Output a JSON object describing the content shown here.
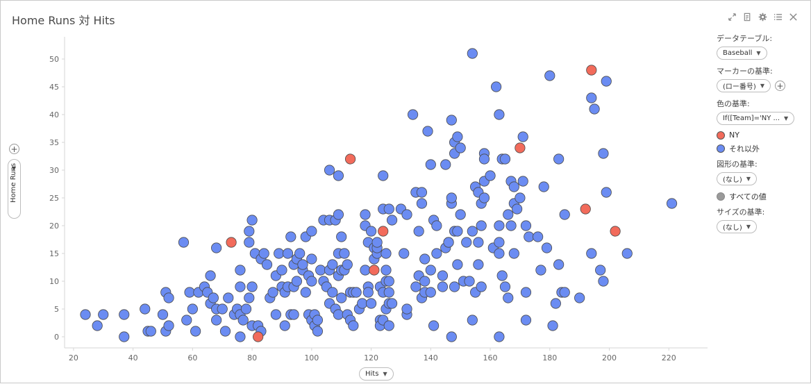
{
  "title": "Home Runs 対 Hits",
  "toolbar": {
    "icons": [
      "expand-icon",
      "export-icon",
      "settings-icon",
      "list-icon",
      "close-icon"
    ]
  },
  "panel": {
    "data_table_label": "データテーブル:",
    "data_table_value": "Baseball",
    "marker_by_label": "マーカーの基準:",
    "marker_by_value": "(ロー番号)",
    "color_by_label": "色の基準:",
    "color_by_value": "If([Team]='NY ...",
    "legend": [
      {
        "label": "NY",
        "color": "#f26b5b"
      },
      {
        "label": "それ以外",
        "color": "#6b8cf2"
      }
    ],
    "shape_by_label": "図形の基準:",
    "shape_by_value": "(なし)",
    "shape_legend_label": "すべての値",
    "shape_legend_color": "#9a9a9a",
    "size_by_label": "サイズの基準:",
    "size_by_value": "(なし)"
  },
  "colors": {
    "ny": "#f26b5b",
    "other": "#6b8cf2",
    "outline": "#4a4a4a",
    "axis": "#d6d6d6",
    "tick_text": "#666666"
  },
  "chart_data": {
    "type": "scatter",
    "xlabel": "Hits",
    "ylabel": "Home Runs",
    "xlim": [
      17,
      233
    ],
    "ylim": [
      -2,
      53
    ],
    "xticks": [
      20,
      40,
      60,
      80,
      100,
      120,
      140,
      160,
      180,
      200,
      220
    ],
    "yticks": [
      0,
      5,
      10,
      15,
      20,
      25,
      30,
      35,
      40,
      45,
      50
    ],
    "grid": false,
    "legend": "right",
    "series": [
      {
        "name": "NY",
        "points": [
          [
            73,
            17
          ],
          [
            82,
            0
          ],
          [
            113,
            32
          ],
          [
            121,
            12
          ],
          [
            124,
            19
          ],
          [
            170,
            34
          ],
          [
            192,
            23
          ],
          [
            194,
            48
          ],
          [
            202,
            19
          ]
        ]
      },
      {
        "name": "それ以外",
        "points": [
          [
            24,
            4
          ],
          [
            28,
            2
          ],
          [
            30,
            4
          ],
          [
            37,
            4
          ],
          [
            37,
            0
          ],
          [
            44,
            5
          ],
          [
            45,
            1
          ],
          [
            46,
            1
          ],
          [
            50,
            4
          ],
          [
            51,
            8
          ],
          [
            51,
            1
          ],
          [
            52,
            2
          ],
          [
            52,
            7
          ],
          [
            57,
            17
          ],
          [
            58,
            3
          ],
          [
            59,
            8
          ],
          [
            60,
            5
          ],
          [
            61,
            1
          ],
          [
            62,
            8
          ],
          [
            64,
            9
          ],
          [
            65,
            8
          ],
          [
            66,
            6
          ],
          [
            66,
            11
          ],
          [
            67,
            7
          ],
          [
            68,
            3
          ],
          [
            68,
            5
          ],
          [
            68,
            16
          ],
          [
            70,
            5
          ],
          [
            71,
            1
          ],
          [
            72,
            7
          ],
          [
            74,
            4
          ],
          [
            75,
            5
          ],
          [
            76,
            0
          ],
          [
            76,
            9
          ],
          [
            76,
            12
          ],
          [
            76,
            4
          ],
          [
            77,
            3
          ],
          [
            78,
            5
          ],
          [
            79,
            17
          ],
          [
            79,
            19
          ],
          [
            79,
            7
          ],
          [
            80,
            21
          ],
          [
            80,
            2
          ],
          [
            80,
            9
          ],
          [
            81,
            15
          ],
          [
            82,
            2
          ],
          [
            83,
            1
          ],
          [
            83,
            14
          ],
          [
            84,
            15
          ],
          [
            85,
            13
          ],
          [
            86,
            7
          ],
          [
            87,
            8
          ],
          [
            88,
            11
          ],
          [
            88,
            4
          ],
          [
            89,
            15
          ],
          [
            90,
            9
          ],
          [
            90,
            12
          ],
          [
            91,
            2
          ],
          [
            91,
            8
          ],
          [
            92,
            9
          ],
          [
            92,
            15
          ],
          [
            93,
            18
          ],
          [
            93,
            4
          ],
          [
            94,
            4
          ],
          [
            94,
            13
          ],
          [
            94,
            9
          ],
          [
            95,
            14
          ],
          [
            95,
            10
          ],
          [
            96,
            15
          ],
          [
            97,
            12
          ],
          [
            97,
            13
          ],
          [
            98,
            8
          ],
          [
            98,
            18
          ],
          [
            99,
            4
          ],
          [
            99,
            11
          ],
          [
            100,
            3
          ],
          [
            100,
            10
          ],
          [
            100,
            19
          ],
          [
            100,
            14
          ],
          [
            101,
            4
          ],
          [
            101,
            2
          ],
          [
            102,
            3
          ],
          [
            102,
            1
          ],
          [
            103,
            12
          ],
          [
            104,
            21
          ],
          [
            104,
            10
          ],
          [
            105,
            9
          ],
          [
            106,
            30
          ],
          [
            106,
            21
          ],
          [
            106,
            6
          ],
          [
            106,
            12
          ],
          [
            107,
            8
          ],
          [
            107,
            13
          ],
          [
            108,
            5
          ],
          [
            108,
            21
          ],
          [
            109,
            4
          ],
          [
            109,
            22
          ],
          [
            109,
            29
          ],
          [
            109,
            15
          ],
          [
            109,
            11
          ],
          [
            110,
            12
          ],
          [
            110,
            7
          ],
          [
            110,
            18
          ],
          [
            111,
            15
          ],
          [
            111,
            12
          ],
          [
            112,
            13
          ],
          [
            112,
            4
          ],
          [
            113,
            3
          ],
          [
            113,
            8
          ],
          [
            114,
            2
          ],
          [
            114,
            8
          ],
          [
            115,
            8
          ],
          [
            116,
            5
          ],
          [
            117,
            6
          ],
          [
            118,
            12
          ],
          [
            118,
            20
          ],
          [
            118,
            22
          ],
          [
            119,
            9
          ],
          [
            119,
            8
          ],
          [
            119,
            17
          ],
          [
            120,
            19
          ],
          [
            120,
            6
          ],
          [
            121,
            14
          ],
          [
            121,
            16
          ],
          [
            122,
            15
          ],
          [
            122,
            16
          ],
          [
            122,
            17
          ],
          [
            123,
            9
          ],
          [
            123,
            3
          ],
          [
            123,
            2
          ],
          [
            124,
            29
          ],
          [
            124,
            23
          ],
          [
            124,
            8
          ],
          [
            124,
            3
          ],
          [
            125,
            5
          ],
          [
            125,
            12
          ],
          [
            125,
            10
          ],
          [
            125,
            15
          ],
          [
            126,
            2
          ],
          [
            126,
            23
          ],
          [
            126,
            6
          ],
          [
            126,
            8
          ],
          [
            126,
            10
          ],
          [
            127,
            6
          ],
          [
            127,
            21
          ],
          [
            130,
            23
          ],
          [
            131,
            15
          ],
          [
            132,
            4
          ],
          [
            132,
            22
          ],
          [
            132,
            5
          ],
          [
            134,
            40
          ],
          [
            135,
            26
          ],
          [
            135,
            9
          ],
          [
            136,
            11
          ],
          [
            136,
            19
          ],
          [
            137,
            26
          ],
          [
            137,
            24
          ],
          [
            137,
            7
          ],
          [
            138,
            14
          ],
          [
            138,
            8
          ],
          [
            138,
            10
          ],
          [
            139,
            37
          ],
          [
            140,
            31
          ],
          [
            140,
            8
          ],
          [
            140,
            12
          ],
          [
            141,
            21
          ],
          [
            141,
            2
          ],
          [
            142,
            20
          ],
          [
            142,
            15
          ],
          [
            144,
            11
          ],
          [
            144,
            9
          ],
          [
            145,
            16
          ],
          [
            145,
            31
          ],
          [
            146,
            17
          ],
          [
            146,
            17
          ],
          [
            147,
            39
          ],
          [
            147,
            24
          ],
          [
            147,
            25
          ],
          [
            147,
            0
          ],
          [
            148,
            35
          ],
          [
            148,
            33
          ],
          [
            148,
            19
          ],
          [
            148,
            9
          ],
          [
            149,
            36
          ],
          [
            149,
            19
          ],
          [
            149,
            13
          ],
          [
            150,
            34
          ],
          [
            150,
            22
          ],
          [
            151,
            10
          ],
          [
            152,
            17
          ],
          [
            153,
            10
          ],
          [
            154,
            51
          ],
          [
            154,
            3
          ],
          [
            154,
            19
          ],
          [
            155,
            27
          ],
          [
            155,
            8
          ],
          [
            156,
            26
          ],
          [
            156,
            17
          ],
          [
            156,
            13
          ],
          [
            157,
            24
          ],
          [
            157,
            20
          ],
          [
            157,
            9
          ],
          [
            158,
            33
          ],
          [
            158,
            32
          ],
          [
            158,
            25
          ],
          [
            158,
            28
          ],
          [
            160,
            29
          ],
          [
            161,
            16
          ],
          [
            162,
            45
          ],
          [
            163,
            17
          ],
          [
            163,
            20
          ],
          [
            163,
            0
          ],
          [
            163,
            40
          ],
          [
            163,
            15
          ],
          [
            164,
            32
          ],
          [
            164,
            11
          ],
          [
            165,
            32
          ],
          [
            165,
            9
          ],
          [
            166,
            22
          ],
          [
            166,
            7
          ],
          [
            167,
            28
          ],
          [
            167,
            20
          ],
          [
            168,
            24
          ],
          [
            168,
            27
          ],
          [
            168,
            15
          ],
          [
            169,
            23
          ],
          [
            170,
            25
          ],
          [
            171,
            36
          ],
          [
            171,
            28
          ],
          [
            172,
            3
          ],
          [
            172,
            20
          ],
          [
            172,
            8
          ],
          [
            173,
            18
          ],
          [
            176,
            18
          ],
          [
            177,
            12
          ],
          [
            178,
            27
          ],
          [
            179,
            16
          ],
          [
            180,
            47
          ],
          [
            181,
            2
          ],
          [
            182,
            6
          ],
          [
            183,
            32
          ],
          [
            183,
            13
          ],
          [
            184,
            8
          ],
          [
            185,
            22
          ],
          [
            185,
            8
          ],
          [
            190,
            7
          ],
          [
            194,
            43
          ],
          [
            194,
            15
          ],
          [
            195,
            41
          ],
          [
            197,
            12
          ],
          [
            198,
            10
          ],
          [
            198,
            33
          ],
          [
            199,
            46
          ],
          [
            199,
            26
          ],
          [
            206,
            15
          ],
          [
            221,
            24
          ]
        ]
      }
    ]
  }
}
